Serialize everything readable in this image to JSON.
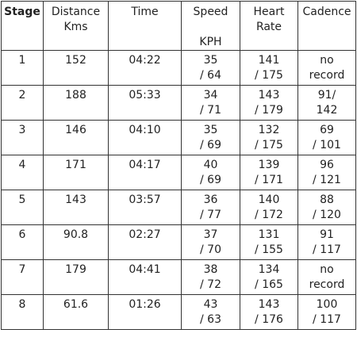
{
  "table": {
    "headers": {
      "stage": "Stage",
      "distance": [
        "Distance",
        "Kms"
      ],
      "time": "Time",
      "speed": "Speed",
      "speed_unit": "KPH",
      "heart_rate": [
        "Heart",
        "Rate"
      ],
      "cadence": "Cadence"
    },
    "rows": [
      {
        "stage": "1",
        "distance": "152",
        "time": "04:22",
        "speed": [
          "35",
          "/ 64"
        ],
        "heart": [
          "141",
          "/ 175"
        ],
        "cadence": [
          "no",
          "record"
        ]
      },
      {
        "stage": "2",
        "distance": "188",
        "time": "05:33",
        "speed": [
          "34",
          "/ 71"
        ],
        "heart": [
          "143",
          "/ 179"
        ],
        "cadence": [
          "91/",
          "142"
        ]
      },
      {
        "stage": "3",
        "distance": "146",
        "time": "04:10",
        "speed": [
          "35",
          "/ 69"
        ],
        "heart": [
          "132",
          "/ 175"
        ],
        "cadence": [
          "69",
          "/ 101"
        ]
      },
      {
        "stage": "4",
        "distance": "171",
        "time": "04:17",
        "speed": [
          "40",
          "/ 69"
        ],
        "heart": [
          "139",
          "/ 171"
        ],
        "cadence": [
          "96",
          "/ 121"
        ]
      },
      {
        "stage": "5",
        "distance": "143",
        "time": "03:57",
        "speed": [
          "36",
          "/ 77"
        ],
        "heart": [
          "140",
          "/ 172"
        ],
        "cadence": [
          "88",
          "/ 120"
        ]
      },
      {
        "stage": "6",
        "distance": "90.8",
        "time": "02:27",
        "speed": [
          "37",
          "/ 70"
        ],
        "heart": [
          "131",
          "/ 155"
        ],
        "cadence": [
          "91",
          "/ 117"
        ]
      },
      {
        "stage": "7",
        "distance": "179",
        "time": "04:41",
        "speed": [
          "38",
          "/ 72"
        ],
        "heart": [
          "134",
          "/ 165"
        ],
        "cadence": [
          "no",
          "record"
        ]
      },
      {
        "stage": "8",
        "distance": "61.6",
        "time": "01:26",
        "speed": [
          "43",
          "/ 63"
        ],
        "heart": [
          "143",
          "/ 176"
        ],
        "cadence": [
          "100",
          "/ 117"
        ]
      }
    ]
  }
}
